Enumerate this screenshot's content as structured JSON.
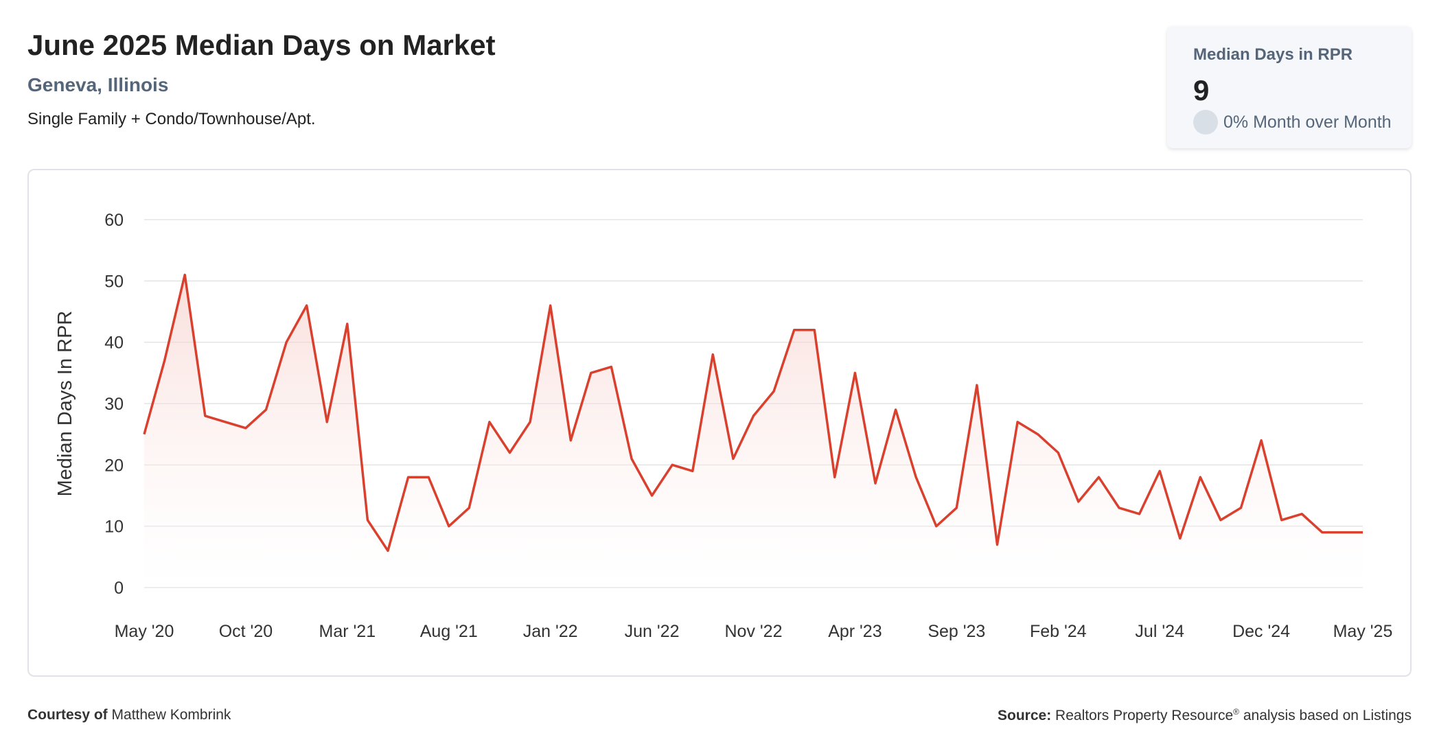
{
  "header": {
    "title": "June 2025 Median Days on Market",
    "location": "Geneva, Illinois",
    "segment": "Single Family + Condo/Townhouse/Apt."
  },
  "stat_card": {
    "label": "Median Days in RPR",
    "value": "9",
    "change": "0% Month over Month"
  },
  "footer": {
    "courtesy_label": "Courtesy of",
    "courtesy_name": "Matthew Kombrink",
    "source_label": "Source:",
    "source_text_1": "Realtors Property Resource",
    "source_mark": "®",
    "source_text_2": " analysis based on Listings"
  },
  "colors": {
    "line": "#d9402e",
    "fill_top": "#f5c8c2",
    "grid": "#e3e3e3",
    "accent_text": "#55657a"
  },
  "chart_data": {
    "type": "area",
    "ylabel": "Median Days In RPR",
    "xlabel": "",
    "ylim": [
      0,
      60
    ],
    "yticks": [
      0,
      10,
      20,
      30,
      40,
      50,
      60
    ],
    "grid": true,
    "x_tick_labels": [
      "May '20",
      "Oct '20",
      "Mar '21",
      "Aug '21",
      "Jan '22",
      "Jun '22",
      "Nov '22",
      "Apr '23",
      "Sep '23",
      "Feb '24",
      "Jul '24",
      "Dec '24",
      "May '25"
    ],
    "x": [
      "2020-05",
      "2020-06",
      "2020-07",
      "2020-08",
      "2020-09",
      "2020-10",
      "2020-11",
      "2020-12",
      "2021-01",
      "2021-02",
      "2021-03",
      "2021-04",
      "2021-05",
      "2021-06",
      "2021-07",
      "2021-08",
      "2021-09",
      "2021-10",
      "2021-11",
      "2021-12",
      "2022-01",
      "2022-02",
      "2022-03",
      "2022-04",
      "2022-05",
      "2022-06",
      "2022-07",
      "2022-08",
      "2022-09",
      "2022-10",
      "2022-11",
      "2022-12",
      "2023-01",
      "2023-02",
      "2023-03",
      "2023-04",
      "2023-05",
      "2023-06",
      "2023-07",
      "2023-08",
      "2023-09",
      "2023-10",
      "2023-11",
      "2023-12",
      "2024-01",
      "2024-02",
      "2024-03",
      "2024-04",
      "2024-05",
      "2024-06",
      "2024-07",
      "2024-08",
      "2024-09",
      "2024-10",
      "2024-11",
      "2024-12",
      "2025-01",
      "2025-02",
      "2025-03",
      "2025-04",
      "2025-05"
    ],
    "series": [
      {
        "values": [
          25,
          37,
          51,
          28,
          27,
          26,
          29,
          40,
          46,
          27,
          43,
          11,
          6,
          18,
          18,
          10,
          13,
          27,
          22,
          27,
          46,
          24,
          35,
          36,
          21,
          15,
          20,
          19,
          38,
          21,
          28,
          32,
          42,
          42,
          18,
          35,
          17,
          29,
          18,
          10,
          13,
          33,
          7,
          27,
          25,
          22,
          14,
          18,
          13,
          12,
          19,
          8,
          18,
          11,
          13,
          24,
          11,
          12,
          9,
          9,
          9
        ]
      }
    ]
  }
}
